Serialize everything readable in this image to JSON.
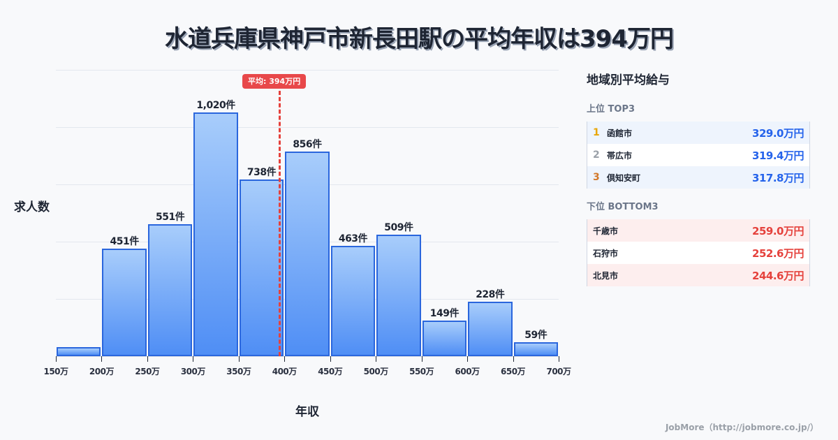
{
  "header": {
    "title": "水道兵庫県神戸市新長田駅の平均年収は394万円"
  },
  "chart_data": {
    "type": "bar",
    "title": "水道兵庫県神戸市新長田駅の平均年収は394万円",
    "xlabel": "年収",
    "ylabel": "求人数",
    "categories": [
      "150-200万",
      "200-250万",
      "250-300万",
      "300-350万",
      "350-400万",
      "400-450万",
      "450-500万",
      "500-550万",
      "550-600万",
      "600-650万",
      "650-700万"
    ],
    "values": [
      38,
      451,
      551,
      1020,
      738,
      856,
      463,
      509,
      149,
      228,
      59
    ],
    "value_labels": [
      "",
      "451件",
      "551件",
      "1,020件",
      "738件",
      "856件",
      "463件",
      "509件",
      "149件",
      "228件",
      "59件"
    ],
    "x_ticks": [
      "150万",
      "200万",
      "250万",
      "300万",
      "350万",
      "400万",
      "450万",
      "500万",
      "550万",
      "600万",
      "650万",
      "700万"
    ],
    "grid": true,
    "average_line": {
      "value": 394,
      "label": "平均: 394万円",
      "color": "#e5413c"
    },
    "bar_color": "#4f8ef5",
    "bar_border_color": "#2a66dd"
  },
  "chart": {
    "ylabel": "求人数",
    "xlabel": "年収",
    "avg_label": "平均: 394万円"
  },
  "panel": {
    "title": "地域別平均給与",
    "top": {
      "heading": "上位 TOP3",
      "rows": [
        {
          "rank": "1",
          "name": "函館市",
          "value": "329.0万円",
          "rank_color": "#e8a500"
        },
        {
          "rank": "2",
          "name": "帯広市",
          "value": "319.4万円",
          "rank_color": "#9aa0a8"
        },
        {
          "rank": "3",
          "name": "倶知安町",
          "value": "317.8万円",
          "rank_color": "#d2782a"
        }
      ]
    },
    "bottom": {
      "heading": "下位 BOTTOM3",
      "rows": [
        {
          "name": "千歳市",
          "value": "259.0万円"
        },
        {
          "name": "石狩市",
          "value": "252.6万円"
        },
        {
          "name": "北見市",
          "value": "244.6万円"
        }
      ]
    },
    "colors": {
      "top_value": "#2563eb",
      "bottom_value": "#e5413c"
    }
  },
  "footer": {
    "credit": "JobMore（http://jobmore.co.jp/）"
  }
}
